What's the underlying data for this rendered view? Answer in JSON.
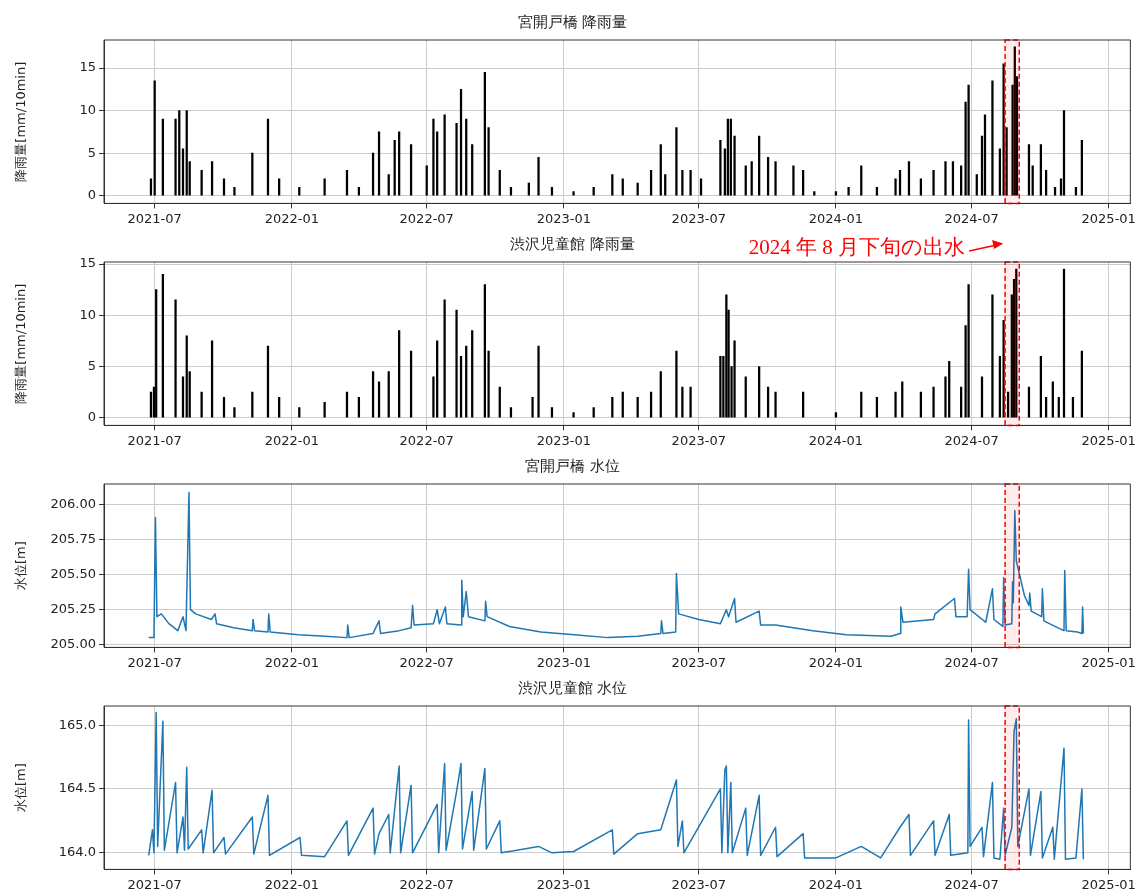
{
  "chart_data": [
    {
      "type": "bar",
      "title": "宮開戸橋 降雨量",
      "ylabel": "降雨量[mm/10min]",
      "color": "#000000",
      "grid": true,
      "xlim": [
        "2021-04-24",
        "2025-01-30"
      ],
      "xticks": [
        "2021-07",
        "2022-01",
        "2022-07",
        "2023-01",
        "2023-07",
        "2024-01",
        "2024-07",
        "2025-01"
      ],
      "ylim": [
        -0.9,
        18.3
      ],
      "yticks": [
        0,
        5,
        10,
        15
      ],
      "bands": [
        {
          "axis": "x",
          "from": "2024-08-15",
          "to": "2024-09-03",
          "color": "#ff0000"
        }
      ],
      "x": [
        "2021-06-26",
        "2021-07-01",
        "2021-07-12",
        "2021-07-29",
        "2021-08-03",
        "2021-08-08",
        "2021-08-13",
        "2021-08-17",
        "2021-09-02",
        "2021-09-16",
        "2021-10-02",
        "2021-10-16",
        "2021-11-09",
        "2021-11-30",
        "2021-12-15",
        "2022-01-11",
        "2022-02-14",
        "2022-03-16",
        "2022-04-01",
        "2022-04-20",
        "2022-04-28",
        "2022-05-11",
        "2022-05-19",
        "2022-05-25",
        "2022-06-10",
        "2022-07-01",
        "2022-07-10",
        "2022-07-15",
        "2022-07-25",
        "2022-08-10",
        "2022-08-16",
        "2022-08-23",
        "2022-08-31",
        "2022-09-17",
        "2022-09-22",
        "2022-10-07",
        "2022-10-22",
        "2022-11-15",
        "2022-11-28",
        "2022-12-16",
        "2023-01-14",
        "2023-02-10",
        "2023-03-07",
        "2023-03-21",
        "2023-04-10",
        "2023-04-28",
        "2023-05-11",
        "2023-05-17",
        "2023-06-01",
        "2023-06-09",
        "2023-06-20",
        "2023-07-04",
        "2023-07-30",
        "2023-08-05",
        "2023-08-09",
        "2023-08-13",
        "2023-08-18",
        "2023-09-02",
        "2023-09-10",
        "2023-09-20",
        "2023-10-02",
        "2023-10-12",
        "2023-11-05",
        "2023-11-18",
        "2023-12-03",
        "2024-01-01",
        "2024-01-18",
        "2024-02-04",
        "2024-02-25",
        "2024-03-21",
        "2024-03-27",
        "2024-04-08",
        "2024-04-24",
        "2024-05-11",
        "2024-05-27",
        "2024-06-06",
        "2024-06-17",
        "2024-06-23",
        "2024-06-27",
        "2024-07-08",
        "2024-07-15",
        "2024-07-19",
        "2024-07-29",
        "2024-08-08",
        "2024-08-13",
        "2024-08-17",
        "2024-08-25",
        "2024-08-28",
        "2024-08-31",
        "2024-09-16",
        "2024-09-21",
        "2024-10-02",
        "2024-10-09",
        "2024-10-21",
        "2024-10-29",
        "2024-11-02",
        "2024-11-18",
        "2024-11-26"
      ],
      "values": [
        2,
        13.5,
        9,
        9,
        10,
        5.5,
        10,
        4,
        3,
        4,
        2,
        1,
        5,
        9,
        2,
        1,
        2,
        3,
        1,
        5,
        7.5,
        2.5,
        6.5,
        7.5,
        6,
        3.5,
        9,
        7.5,
        9.5,
        8.5,
        12.5,
        9,
        6,
        14.5,
        8,
        3,
        1,
        1.5,
        4.5,
        1,
        0.5,
        1,
        2.5,
        2,
        1.5,
        3,
        6,
        2.5,
        8,
        3,
        3,
        2,
        6.5,
        5.5,
        9,
        9,
        7,
        3.5,
        4,
        7,
        4.5,
        4,
        3.5,
        3,
        0.5,
        0.5,
        1,
        3.5,
        1,
        2,
        3,
        4,
        2,
        3,
        4,
        4,
        3.5,
        11,
        13,
        2.5,
        7,
        9.5,
        13.5,
        5.5,
        15.5,
        8,
        13,
        17.5,
        14,
        6,
        3.5,
        6,
        3,
        1,
        2,
        10,
        1,
        6.5
      ]
    },
    {
      "type": "bar",
      "title": "渋沢児童館 降雨量",
      "ylabel": "降雨量[mm/10min]",
      "color": "#000000",
      "grid": true,
      "xlim": [
        "2021-04-24",
        "2025-01-30"
      ],
      "xticks": [
        "2021-07",
        "2022-01",
        "2022-07",
        "2023-01",
        "2023-07",
        "2024-01",
        "2024-07",
        "2025-01"
      ],
      "ylim": [
        -0.75,
        15.2
      ],
      "yticks": [
        0,
        5,
        10,
        15
      ],
      "bands": [
        {
          "axis": "x",
          "from": "2024-08-15",
          "to": "2024-09-03",
          "color": "#ff0000"
        }
      ],
      "annotations": [
        "2024 年 8 月下旬の出水"
      ],
      "x": [
        "2021-06-26",
        "2021-06-30",
        "2021-07-03",
        "2021-07-12",
        "2021-07-29",
        "2021-08-08",
        "2021-08-13",
        "2021-08-17",
        "2021-09-02",
        "2021-09-16",
        "2021-10-02",
        "2021-10-16",
        "2021-11-09",
        "2021-11-30",
        "2021-12-15",
        "2022-01-11",
        "2022-02-14",
        "2022-03-16",
        "2022-04-01",
        "2022-04-20",
        "2022-04-28",
        "2022-05-11",
        "2022-05-25",
        "2022-06-10",
        "2022-07-10",
        "2022-07-15",
        "2022-07-25",
        "2022-08-10",
        "2022-08-16",
        "2022-08-23",
        "2022-08-31",
        "2022-09-17",
        "2022-09-22",
        "2022-10-07",
        "2022-10-22",
        "2022-11-20",
        "2022-11-28",
        "2022-12-16",
        "2023-01-14",
        "2023-02-10",
        "2023-03-07",
        "2023-03-21",
        "2023-04-10",
        "2023-04-28",
        "2023-05-11",
        "2023-06-01",
        "2023-06-09",
        "2023-06-20",
        "2023-07-30",
        "2023-08-03",
        "2023-08-07",
        "2023-08-10",
        "2023-08-14",
        "2023-08-18",
        "2023-09-02",
        "2023-09-20",
        "2023-10-02",
        "2023-10-12",
        "2023-11-18",
        "2024-01-01",
        "2024-02-04",
        "2024-02-25",
        "2024-03-21",
        "2024-03-30",
        "2024-04-24",
        "2024-05-11",
        "2024-05-27",
        "2024-06-01",
        "2024-06-17",
        "2024-06-23",
        "2024-06-27",
        "2024-07-15",
        "2024-07-29",
        "2024-08-08",
        "2024-08-13",
        "2024-08-19",
        "2024-08-24",
        "2024-08-27",
        "2024-08-30",
        "2024-09-16",
        "2024-10-02",
        "2024-10-09",
        "2024-10-18",
        "2024-10-26",
        "2024-11-02",
        "2024-11-14",
        "2024-11-26"
      ],
      "values": [
        2.5,
        3,
        12.5,
        14,
        11.5,
        4,
        8,
        4.5,
        2.5,
        7.5,
        2,
        1,
        2.5,
        7,
        2,
        1,
        1.5,
        2.5,
        2,
        4.5,
        3.5,
        4.5,
        8.5,
        6.5,
        4,
        7.5,
        11.5,
        10.5,
        6,
        7,
        8.5,
        13,
        6.5,
        3,
        1,
        2,
        7,
        1,
        0.5,
        1,
        2,
        2.5,
        2,
        2.5,
        4.5,
        6.5,
        3,
        3,
        6,
        6,
        12,
        10.5,
        5,
        7.5,
        4,
        5,
        3,
        2.5,
        2.5,
        0.5,
        2.5,
        2,
        2.5,
        3.5,
        2.5,
        3,
        4,
        5.5,
        3,
        9,
        13,
        4,
        12,
        6,
        9.5,
        2.5,
        12,
        13.5,
        14.5,
        3,
        6,
        2,
        3.5,
        2,
        14.5,
        2,
        6.5
      ]
    },
    {
      "type": "line",
      "title": "宮開戸橋 水位",
      "ylabel": "水位[m]",
      "color": "#1f77b4",
      "grid": true,
      "xlim": [
        "2021-04-24",
        "2025-01-30"
      ],
      "xticks": [
        "2021-07",
        "2022-01",
        "2022-07",
        "2023-01",
        "2023-07",
        "2024-01",
        "2024-07",
        "2025-01"
      ],
      "ylim": [
        204.98,
        206.15
      ],
      "yticks": [
        {
          "value": 205,
          "label": "205.00"
        },
        {
          "value": 205.25,
          "label": "205.25"
        },
        {
          "value": 205.5,
          "label": "205.50"
        },
        {
          "value": 205.75,
          "label": "205.75"
        },
        {
          "value": 206,
          "label": "206.00"
        }
      ],
      "bands": [
        {
          "axis": "x",
          "from": "2024-08-15",
          "to": "2024-09-03",
          "color": "#ff0000"
        }
      ],
      "x": [
        "2021-06-23",
        "2021-06-30",
        "2021-07-02",
        "2021-07-04",
        "2021-07-10",
        "2021-07-20",
        "2021-08-01",
        "2021-08-08",
        "2021-08-12",
        "2021-08-16",
        "2021-08-18",
        "2021-08-25",
        "2021-09-15",
        "2021-09-20",
        "2021-09-22",
        "2021-10-15",
        "2021-11-09",
        "2021-11-10",
        "2021-11-12",
        "2021-11-30",
        "2021-12-01",
        "2021-12-03",
        "2022-01-10",
        "2022-02-15",
        "2022-03-16",
        "2022-03-17",
        "2022-03-19",
        "2022-04-20",
        "2022-04-28",
        "2022-04-30",
        "2022-05-25",
        "2022-06-10",
        "2022-06-12",
        "2022-06-14",
        "2022-07-10",
        "2022-07-15",
        "2022-07-18",
        "2022-07-26",
        "2022-07-28",
        "2022-08-16",
        "2022-08-17",
        "2022-08-19",
        "2022-08-23",
        "2022-08-26",
        "2022-09-17",
        "2022-09-18",
        "2022-09-20",
        "2022-10-20",
        "2022-12-01",
        "2023-01-15",
        "2023-03-01",
        "2023-04-10",
        "2023-05-11",
        "2023-05-12",
        "2023-05-14",
        "2023-05-31",
        "2023-06-01",
        "2023-06-04",
        "2023-07-01",
        "2023-07-30",
        "2023-08-07",
        "2023-08-10",
        "2023-08-18",
        "2023-08-20",
        "2023-09-20",
        "2023-09-22",
        "2023-10-12",
        "2023-12-01",
        "2024-01-15",
        "2024-03-15",
        "2024-03-27",
        "2024-03-28",
        "2024-03-31",
        "2024-05-11",
        "2024-05-13",
        "2024-06-08",
        "2024-06-10",
        "2024-06-25",
        "2024-06-27",
        "2024-06-29",
        "2024-07-20",
        "2024-07-29",
        "2024-07-31",
        "2024-08-12",
        "2024-08-13",
        "2024-08-15",
        "2024-08-24",
        "2024-08-25",
        "2024-08-26",
        "2024-08-28",
        "2024-08-30",
        "2024-09-10",
        "2024-09-16",
        "2024-09-17",
        "2024-09-19",
        "2024-10-03",
        "2024-10-04",
        "2024-10-06",
        "2024-10-25",
        "2024-11-02",
        "2024-11-03",
        "2024-11-05",
        "2024-11-20",
        "2024-11-26",
        "2024-11-27",
        "2024-11-28"
      ],
      "values": [
        205.05,
        205.05,
        205.91,
        205.2,
        205.22,
        205.15,
        205.1,
        205.2,
        205.1,
        206.09,
        205.25,
        205.22,
        205.18,
        205.22,
        205.15,
        205.12,
        205.1,
        205.18,
        205.1,
        205.09,
        205.22,
        205.09,
        205.07,
        205.06,
        205.05,
        205.14,
        205.05,
        205.08,
        205.17,
        205.08,
        205.1,
        205.12,
        205.28,
        205.14,
        205.15,
        205.25,
        205.15,
        205.27,
        205.15,
        205.14,
        205.46,
        205.2,
        205.38,
        205.2,
        205.17,
        205.31,
        205.2,
        205.13,
        205.09,
        205.07,
        205.05,
        205.06,
        205.08,
        205.17,
        205.08,
        205.09,
        205.51,
        205.22,
        205.18,
        205.15,
        205.25,
        205.2,
        205.33,
        205.16,
        205.24,
        205.14,
        205.14,
        205.1,
        205.07,
        205.06,
        205.08,
        205.27,
        205.16,
        205.18,
        205.22,
        205.33,
        205.2,
        205.2,
        205.54,
        205.25,
        205.16,
        205.4,
        205.18,
        205.13,
        205.48,
        205.14,
        205.15,
        205.45,
        205.3,
        205.96,
        205.6,
        205.35,
        205.28,
        205.37,
        205.24,
        205.2,
        205.4,
        205.17,
        205.12,
        205.1,
        205.53,
        205.1,
        205.09,
        205.08,
        205.27,
        205.08
      ]
    },
    {
      "type": "line",
      "title": "渋沢児童館 水位",
      "ylabel": "水位[m]",
      "color": "#1f77b4",
      "grid": true,
      "xlim": [
        "2021-04-24",
        "2025-01-30"
      ],
      "xticks": [
        "2021-07",
        "2022-01",
        "2022-07",
        "2023-01",
        "2023-07",
        "2024-01",
        "2024-07",
        "2025-01"
      ],
      "ylim": [
        163.87,
        165.15
      ],
      "yticks": [
        {
          "value": 164,
          "label": "164.0"
        },
        {
          "value": 164.5,
          "label": "164.5"
        },
        {
          "value": 165,
          "label": "165.0"
        }
      ],
      "bands": [
        {
          "axis": "x",
          "from": "2024-08-15",
          "to": "2024-09-03",
          "color": "#ff0000"
        }
      ],
      "x": [
        "2021-06-23",
        "2021-06-28",
        "2021-06-30",
        "2021-07-03",
        "2021-07-05",
        "2021-07-12",
        "2021-07-14",
        "2021-07-29",
        "2021-07-31",
        "2021-08-08",
        "2021-08-10",
        "2021-08-13",
        "2021-08-15",
        "2021-09-02",
        "2021-09-04",
        "2021-09-16",
        "2021-09-18",
        "2021-10-02",
        "2021-10-04",
        "2021-11-09",
        "2021-11-11",
        "2021-11-30",
        "2021-12-02",
        "2022-01-12",
        "2022-01-14",
        "2022-02-14",
        "2022-03-16",
        "2022-03-18",
        "2022-04-20",
        "2022-04-22",
        "2022-04-28",
        "2022-05-11",
        "2022-05-13",
        "2022-05-25",
        "2022-05-27",
        "2022-06-10",
        "2022-06-12",
        "2022-07-15",
        "2022-07-17",
        "2022-07-25",
        "2022-07-27",
        "2022-08-10",
        "2022-08-16",
        "2022-08-18",
        "2022-08-31",
        "2022-09-02",
        "2022-09-17",
        "2022-09-19",
        "2022-10-07",
        "2022-10-09",
        "2022-11-28",
        "2022-12-16",
        "2023-01-14",
        "2023-03-07",
        "2023-03-09",
        "2023-04-10",
        "2023-05-11",
        "2023-06-01",
        "2023-06-03",
        "2023-06-09",
        "2023-06-11",
        "2023-07-30",
        "2023-08-01",
        "2023-08-05",
        "2023-08-07",
        "2023-08-09",
        "2023-08-13",
        "2023-08-15",
        "2023-09-02",
        "2023-09-04",
        "2023-09-20",
        "2023-09-22",
        "2023-10-12",
        "2023-10-14",
        "2023-11-18",
        "2023-11-20",
        "2024-01-01",
        "2024-02-04",
        "2024-03-01",
        "2024-03-27",
        "2024-04-08",
        "2024-04-10",
        "2024-05-11",
        "2024-05-13",
        "2024-06-01",
        "2024-06-03",
        "2024-06-26",
        "2024-06-27",
        "2024-06-29",
        "2024-07-15",
        "2024-07-17",
        "2024-07-29",
        "2024-07-31",
        "2024-08-08",
        "2024-08-13",
        "2024-08-15",
        "2024-08-24",
        "2024-08-27",
        "2024-08-30",
        "2024-09-01",
        "2024-09-16",
        "2024-09-18",
        "2024-10-02",
        "2024-10-04",
        "2024-10-18",
        "2024-10-20",
        "2024-11-02",
        "2024-11-04",
        "2024-11-18",
        "2024-11-26",
        "2024-11-28"
      ],
      "values": [
        163.98,
        164.18,
        164,
        165.1,
        164.05,
        165.03,
        164.02,
        164.55,
        164,
        164.28,
        164.02,
        164.67,
        164.03,
        164.18,
        164,
        164.49,
        164,
        164.12,
        163.99,
        164.28,
        163.99,
        164.45,
        163.98,
        164.12,
        163.98,
        163.97,
        164.25,
        163.98,
        164.35,
        163.99,
        164.15,
        164.3,
        164,
        164.68,
        164,
        164.53,
        164,
        164.38,
        164,
        164.7,
        164.02,
        164.48,
        164.7,
        164.03,
        164.48,
        164.02,
        164.66,
        164.03,
        164.25,
        164,
        164.05,
        164,
        164.01,
        164.18,
        163.99,
        164.15,
        164.18,
        164.57,
        164.05,
        164.25,
        164,
        164.5,
        164,
        164.65,
        164.68,
        164,
        164.55,
        164,
        164.35,
        163.98,
        164.45,
        163.98,
        164.2,
        163.97,
        164.15,
        163.96,
        163.96,
        164.05,
        163.96,
        164.2,
        164.3,
        163.98,
        164.25,
        163.98,
        164.3,
        163.98,
        164,
        165.04,
        164.05,
        164.2,
        163.97,
        164.55,
        163.96,
        163.95,
        164.35,
        163.98,
        164.2,
        164.95,
        165.05,
        164.05,
        164.5,
        163.98,
        164.48,
        163.96,
        164.2,
        163.95,
        164.82,
        163.95,
        163.96,
        164.5,
        163.95
      ]
    }
  ]
}
